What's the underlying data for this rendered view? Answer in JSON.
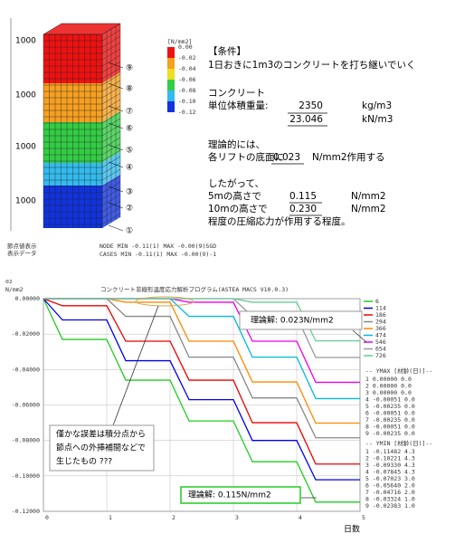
{
  "column": {
    "heights": [
      "1000",
      "1000",
      "1000",
      "1000"
    ],
    "markers": [
      "⑨",
      "⑧",
      "⑦",
      "⑥",
      "⑤",
      "④",
      "③",
      "②",
      "①"
    ],
    "legend_unit": "[N/mm2]",
    "legend_values": [
      "0.00",
      "-0.02",
      "-0.04",
      "-0.06",
      "-0.08",
      "-0.10",
      "-0.12"
    ],
    "footer": [
      "節点値表示",
      "表示データ"
    ],
    "footer_data": [
      "NODE  MIN -0.11(1)    MAX -0.00(9)SGD",
      "CASES MIN -0.11(1)    MAX -0.00(9)-1"
    ]
  },
  "conditions": {
    "heading": "【条件】",
    "line1": "1日おきに1m3のコンクリートを打ち継いでいく",
    "material": "コンクリート",
    "unit_weight_label": "単位体積重量:",
    "unit_weight_1": "2350",
    "unit_weight_1_unit": "kg/m3",
    "unit_weight_2": "23.046",
    "unit_weight_2_unit": "kN/m3",
    "theory": "理論的には、",
    "theory_label": "各リフトの底面に",
    "theory_value": "0.023",
    "theory_unit": "N/mm2作用する",
    "therefore": "したがって、",
    "h5_label": "5mの高さで",
    "h5_value": "0.115",
    "h5_unit": "N/mm2",
    "h10_label": "10mの高さで",
    "h10_value": "0.230",
    "h10_unit": "N/mm2",
    "conclusion": "程度の圧縮応力が作用する程度。"
  },
  "chart_data": {
    "type": "line",
    "title": "コンクリート非線形温度応力解析プログラム(ASTEA MACS V10.0.3)",
    "ylabel": "σz",
    "yunit": "N/mm2",
    "xlabel": "日数",
    "x": [
      0,
      0.3,
      1,
      1.3,
      2,
      2.3,
      3,
      3.3,
      4,
      4.3,
      5
    ],
    "xlim": [
      0,
      5
    ],
    "xticks": [
      0,
      1,
      2,
      3,
      4,
      5
    ],
    "ylim": [
      -0.12,
      0
    ],
    "yticks": [
      {
        "value": 0,
        "label": "0.00000"
      },
      {
        "value": -0.02,
        "label": "-0.02000"
      },
      {
        "value": -0.04,
        "label": "-0.04000"
      },
      {
        "value": -0.06,
        "label": "-0.06000"
      },
      {
        "value": -0.08,
        "label": "-0.08000"
      },
      {
        "value": -0.1,
        "label": "-0.10000"
      },
      {
        "value": -0.12,
        "label": "-0.12000"
      }
    ],
    "grid": true,
    "series": [
      {
        "name": "6",
        "color": "#22cc22",
        "values": [
          0,
          -0.023,
          -0.023,
          -0.046,
          -0.046,
          -0.069,
          -0.069,
          -0.092,
          -0.092,
          -0.1148,
          -0.1148
        ]
      },
      {
        "name": "114",
        "color": "#0000ee",
        "values": [
          0,
          -0.012,
          -0.012,
          -0.035,
          -0.035,
          -0.057,
          -0.057,
          -0.08,
          -0.08,
          -0.1022,
          -0.1022
        ]
      },
      {
        "name": "186",
        "color": "#ee0000",
        "values": [
          0,
          -0.004,
          -0.004,
          -0.024,
          -0.024,
          -0.046,
          -0.046,
          -0.07,
          -0.07,
          -0.0933,
          -0.0933
        ]
      },
      {
        "name": "294",
        "color": "#888888",
        "values": [
          0,
          0,
          0,
          -0.01,
          -0.01,
          -0.033,
          -0.033,
          -0.056,
          -0.056,
          -0.0785,
          -0.0785
        ]
      },
      {
        "name": "366",
        "color": "#ff8800",
        "values": [
          0,
          0,
          0,
          -0.002,
          -0.002,
          -0.024,
          -0.024,
          -0.047,
          -0.047,
          -0.0702,
          -0.0702
        ]
      },
      {
        "name": "474",
        "color": "#00bbdd",
        "values": [
          0,
          0,
          0,
          0,
          0,
          -0.01,
          -0.01,
          -0.033,
          -0.033,
          -0.0564,
          -0.0564
        ]
      },
      {
        "name": "546",
        "color": "#ee00ee",
        "values": [
          0,
          0,
          0,
          0,
          0,
          -0.002,
          -0.002,
          -0.024,
          -0.024,
          -0.0472,
          -0.0472
        ]
      },
      {
        "name": "654",
        "color": "#999999",
        "values": [
          0,
          0,
          0,
          0,
          0,
          0,
          0,
          -0.01,
          -0.01,
          -0.0332,
          -0.0332
        ]
      },
      {
        "name": "726",
        "color": "#66cc99",
        "values": [
          0,
          0,
          0,
          0,
          0,
          0,
          0,
          -0.002,
          -0.002,
          -0.0238,
          -0.0238
        ]
      }
    ],
    "annotations": [
      "理論解: 0.023N/mm2",
      "理論解: 0.115N/mm2",
      "僅かな誤差は積分点から",
      "節点への外挿補間などで",
      "生じたもの ???"
    ],
    "ymax_title": "-- YMAX [材齢(日)]--",
    "ymax_rows": [
      "1  0.00000    0.0",
      "2  0.00000    0.0",
      "3  0.00000    0.0",
      "4 -0.00051    0.0",
      "5 -0.00235    0.0",
      "6 -0.00051    0.0",
      "7 -0.00235    0.0",
      "8 -0.00051    0.0",
      "9 -0.00235    0.0"
    ],
    "ymin_title": "-- YMIN [材齢(日)]--",
    "ymin_rows": [
      "1 -0.11482    4.3",
      "2 -0.10221    4.3",
      "3 -0.09330    4.3",
      "4 -0.07845    4.3",
      "5 -0.07023    3.0",
      "6 -0.05640    2.0",
      "7 -0.04716    2.0",
      "8 -0.03324    1.0",
      "9 -0.02383    1.0"
    ]
  }
}
